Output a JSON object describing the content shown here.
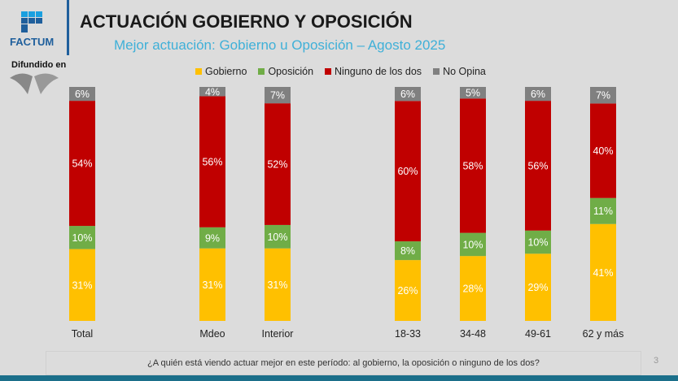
{
  "header": {
    "title": "ACTUACIÓN GOBIERNO Y OPOSICIÓN",
    "subtitle": "Mejor actuación: Gobierno u Oposición – Agosto 2025",
    "logo_text": "FACTUM",
    "broadcast_label": "Difundido en"
  },
  "footer": {
    "question": "¿A quién está viendo actuar mejor en este período: al gobierno, la oposición o ninguno de los dos?",
    "page_number": "3"
  },
  "chart_data": {
    "type": "bar",
    "stacked": true,
    "title": "",
    "xlabel": "",
    "ylabel": "",
    "categories": [
      "Total",
      "Mdeo",
      "Interior",
      "18-33",
      "34-48",
      "49-61",
      "62 y más"
    ],
    "series": [
      {
        "name": "Gobierno",
        "color": "#ffc000",
        "values": [
          31,
          31,
          31,
          26,
          28,
          29,
          41
        ]
      },
      {
        "name": "Oposición",
        "color": "#70ad47",
        "values": [
          10,
          9,
          10,
          8,
          10,
          10,
          11
        ]
      },
      {
        "name": "Ninguno de los dos",
        "color": "#c00000",
        "values": [
          54,
          56,
          52,
          60,
          58,
          56,
          40
        ]
      },
      {
        "name": "No Opina",
        "color": "#808080",
        "values": [
          6,
          4,
          7,
          6,
          5,
          6,
          7
        ]
      }
    ],
    "legend_position": "top",
    "grid": false,
    "value_suffix": "%"
  }
}
